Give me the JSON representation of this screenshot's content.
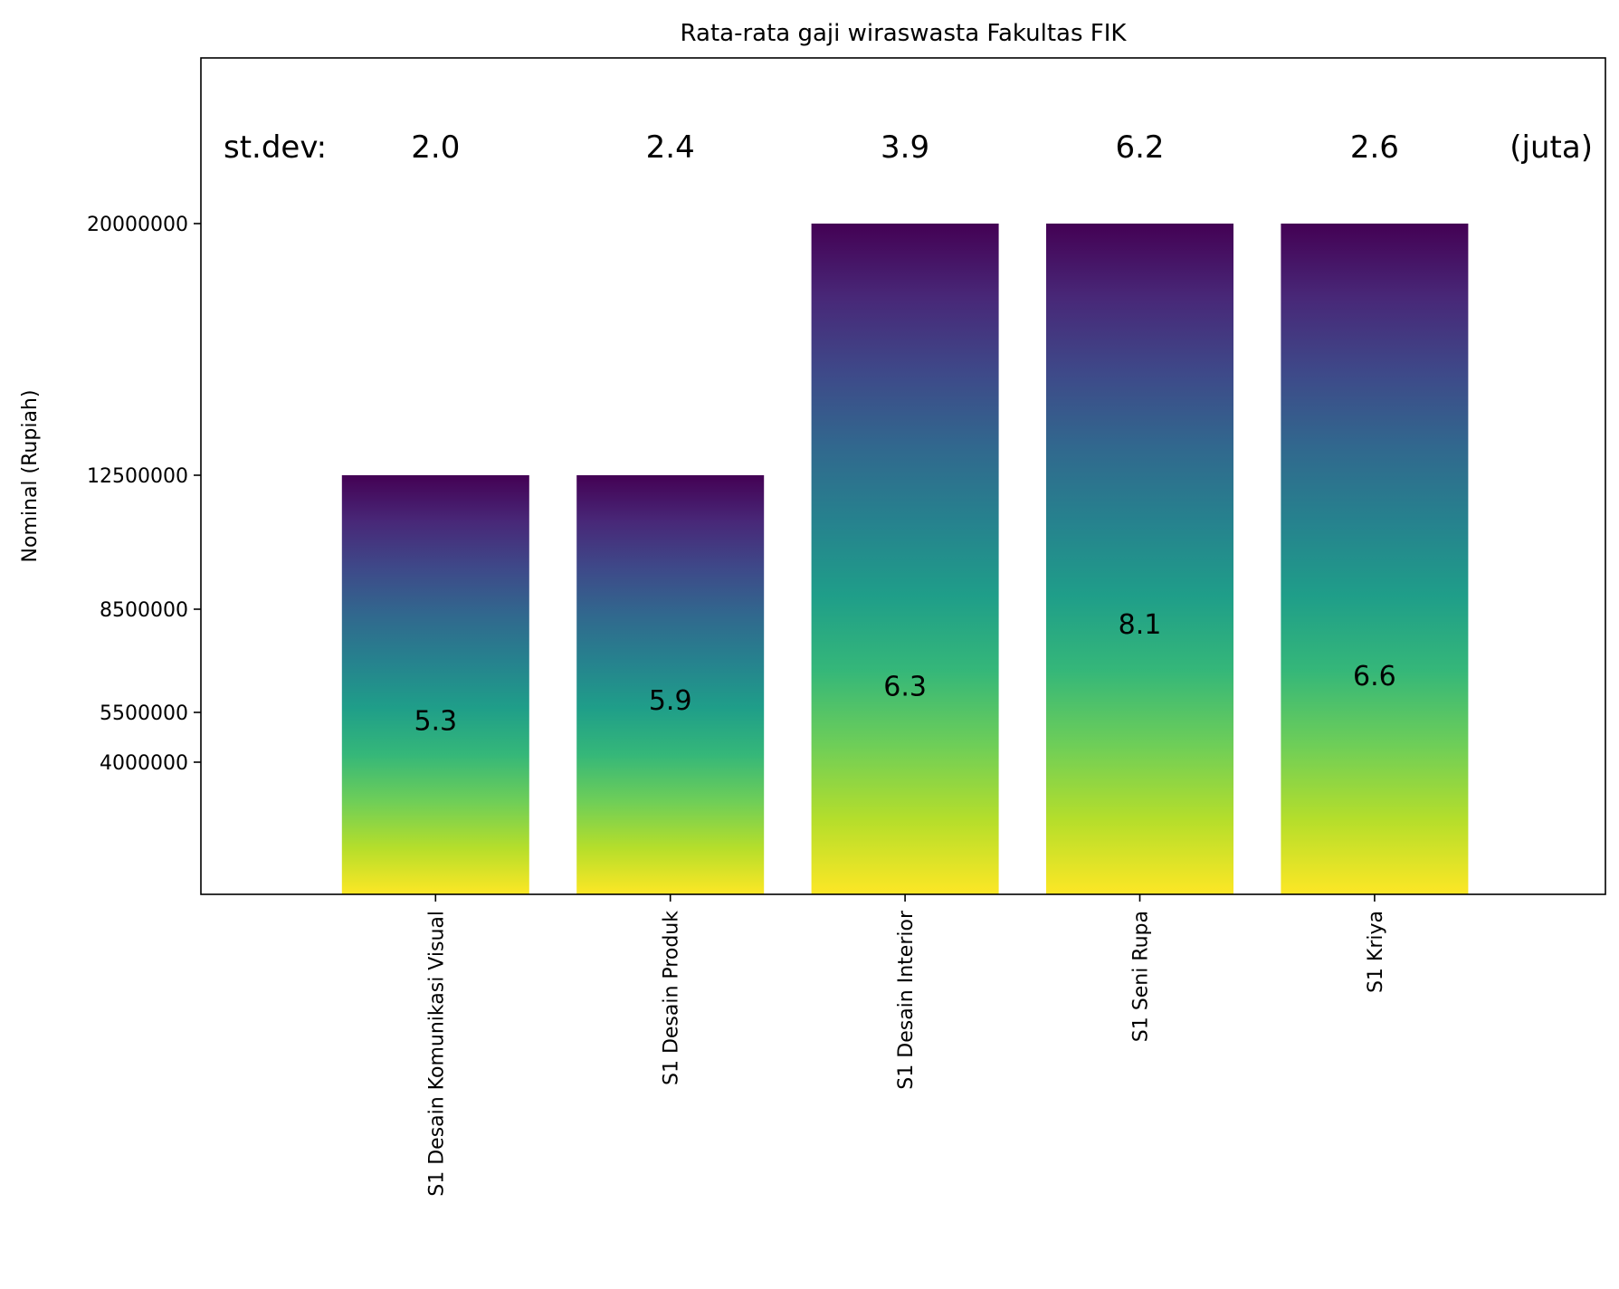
{
  "chart_data": {
    "type": "bar",
    "title": "Rata-rata gaji wiraswasta Fakultas FIK",
    "xlabel": "",
    "ylabel": "Nominal (Rupiah)",
    "categories": [
      "S1 Desain Komunikasi Visual",
      "S1 Desain Produk",
      "S1 Desain Interior",
      "S1 Seni Rupa",
      "S1 Kriya"
    ],
    "values": [
      12500000,
      12500000,
      20000000,
      20000000,
      20000000
    ],
    "mean_labels": [
      "5.3",
      "5.9",
      "6.3",
      "8.1",
      "6.6"
    ],
    "mean_values": [
      5300000,
      5900000,
      6300000,
      8100000,
      6600000
    ],
    "stdev_label": "st.dev:",
    "stdev_values": [
      "2.0",
      "2.4",
      "3.9",
      "6.2",
      "2.6"
    ],
    "stdev_unit": "(juta)",
    "yticks": [
      {
        "label": "4000000",
        "pos": 4000000
      },
      {
        "label": "5500000",
        "pos": 5500000
      },
      {
        "label": "8500000",
        "pos": 8500000
      },
      {
        "label": "12500000",
        "pos": 12500000
      },
      {
        "label": "20000000",
        "pos": 20000000
      }
    ],
    "ylim": [
      0,
      25000000
    ],
    "grid": false,
    "bar_gradient": [
      "#fde725",
      "#b5de2b",
      "#6ece58",
      "#35b779",
      "#1f9e89",
      "#26828e",
      "#31688e",
      "#3e4989",
      "#482878",
      "#440154"
    ]
  }
}
